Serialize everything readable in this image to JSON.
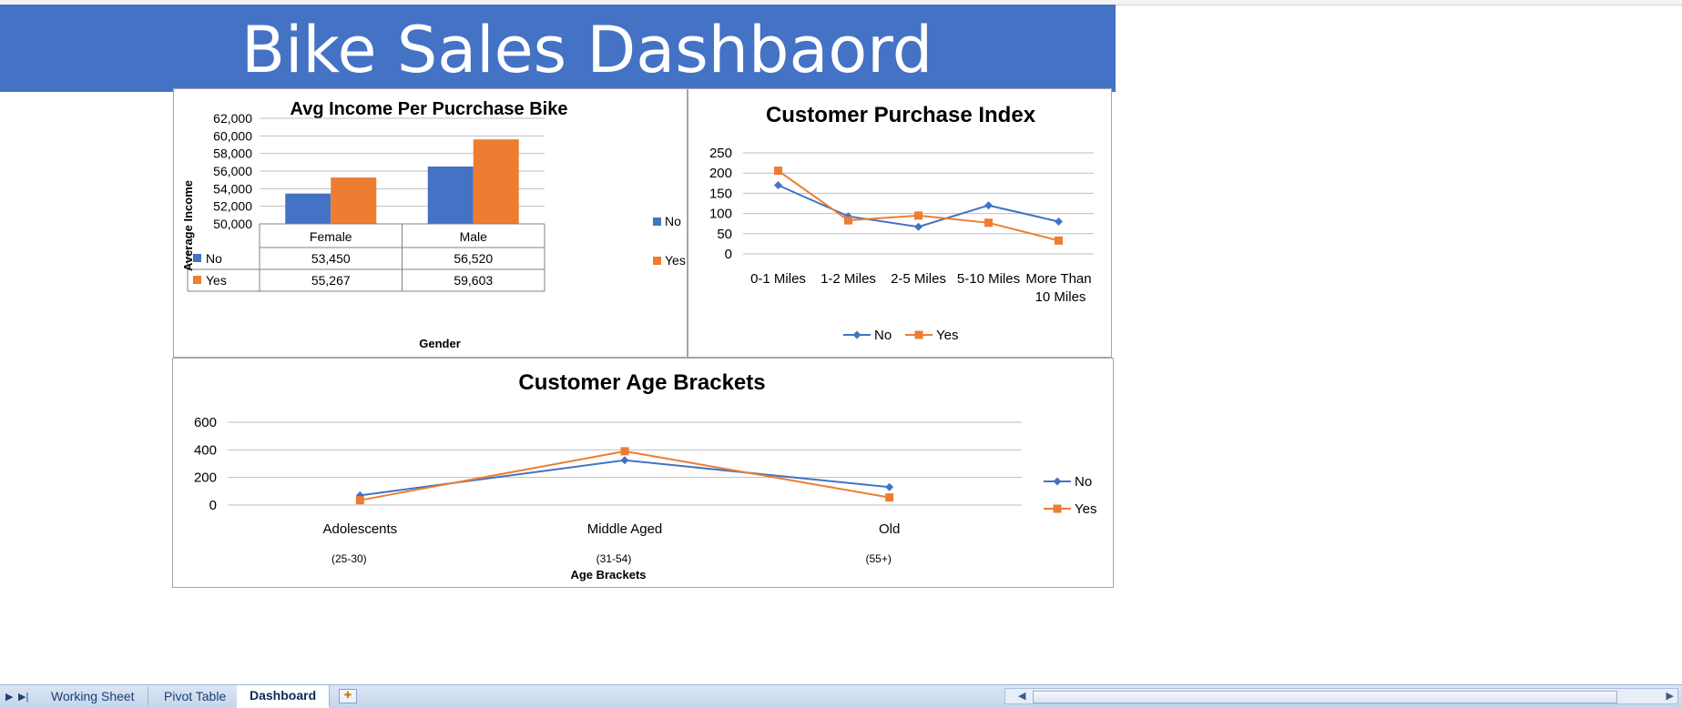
{
  "dashboard": {
    "title": "Bike Sales Dashbaord"
  },
  "colors": {
    "no": "#4472c4",
    "yes": "#ed7d31",
    "banner": "#4472c4",
    "grid": "#d9d9d9"
  },
  "sheet_tabs": [
    {
      "label": "Working Sheet",
      "active": false
    },
    {
      "label": "Pivot Table",
      "active": false
    },
    {
      "label": "Dashboard",
      "active": true
    }
  ],
  "chart_data": [
    {
      "type": "bar",
      "title": "Avg Income Per Pucrchase Bike",
      "xlabel": "Gender",
      "ylabel": "Average Income",
      "categories": [
        "Female",
        "Male"
      ],
      "series": [
        {
          "name": "No",
          "values": [
            53450,
            56520
          ],
          "labels": [
            "53,450",
            "56,520"
          ]
        },
        {
          "name": "Yes",
          "values": [
            55267,
            59603
          ],
          "labels": [
            "55,267",
            "59,603"
          ]
        }
      ],
      "ylim": [
        50000,
        62000
      ],
      "yticks": [
        "50,000",
        "52,000",
        "54,000",
        "56,000",
        "58,000",
        "60,000",
        "62,000"
      ],
      "legend": "right",
      "data_table": true
    },
    {
      "type": "line",
      "title": "Customer Purchase  Index",
      "categories": [
        "0-1 Miles",
        "1-2 Miles",
        "2-5 Miles",
        "5-10 Miles",
        "More Than 10 Miles"
      ],
      "series": [
        {
          "name": "No",
          "values": [
            170,
            93,
            67,
            120,
            80
          ]
        },
        {
          "name": "Yes",
          "values": [
            206,
            83,
            95,
            77,
            33
          ]
        }
      ],
      "ylim": [
        0,
        250
      ],
      "yticks": [
        "0",
        "50",
        "100",
        "150",
        "200",
        "250"
      ],
      "legend": "bottom"
    },
    {
      "type": "line",
      "title": "Customer Age Brackets",
      "xlabel": "Age Brackets",
      "categories": [
        "Adolescents",
        "Middle Aged",
        "Old"
      ],
      "category_ranges": [
        "(25-30)",
        "(31-54)",
        "(55+)"
      ],
      "series": [
        {
          "name": "No",
          "values": [
            70,
            325,
            130
          ]
        },
        {
          "name": "Yes",
          "values": [
            35,
            390,
            55
          ]
        }
      ],
      "ylim": [
        0,
        600
      ],
      "yticks": [
        "0",
        "200",
        "400",
        "600"
      ],
      "legend": "right"
    }
  ]
}
